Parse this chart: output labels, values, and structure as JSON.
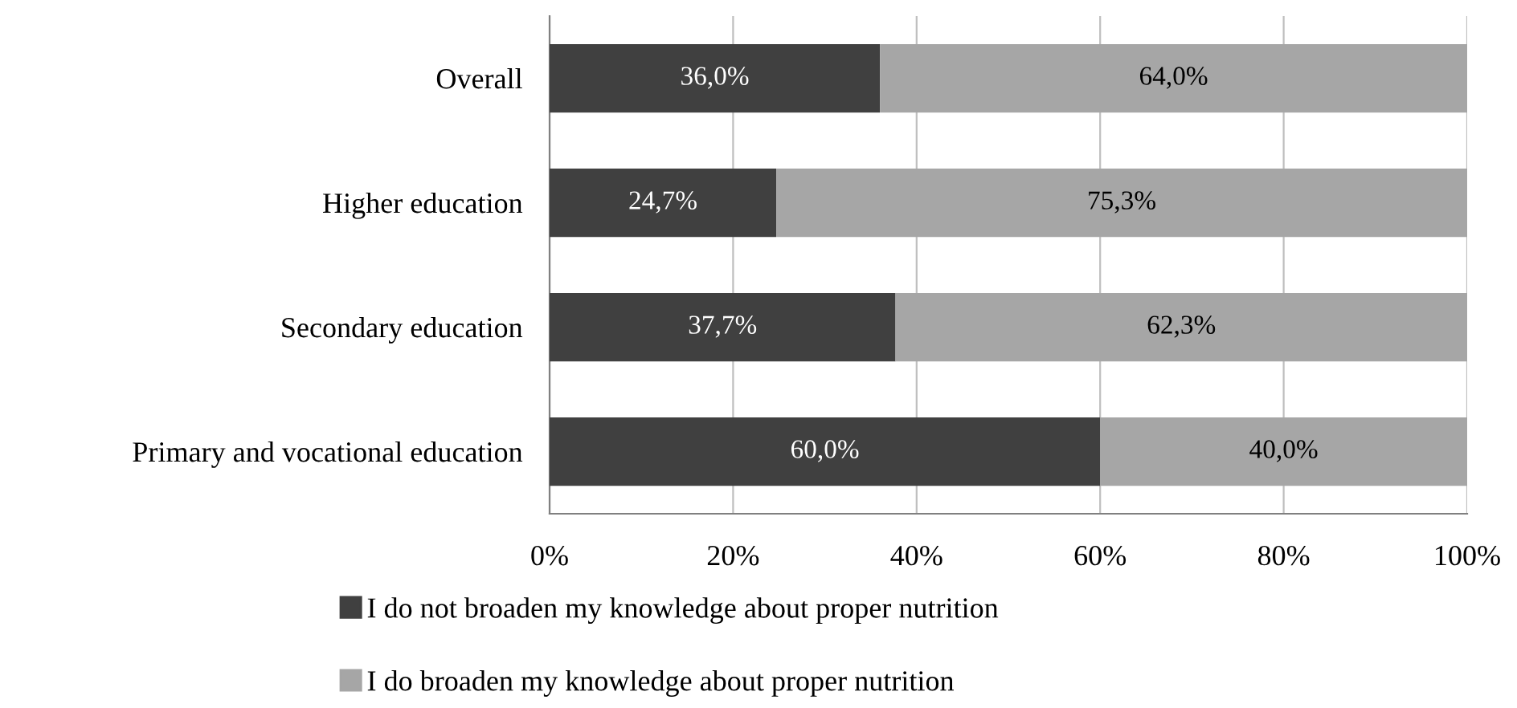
{
  "chart_data": {
    "type": "bar",
    "orientation": "horizontal",
    "stacked": true,
    "categories": [
      "Overall",
      "Higher education",
      "Secondary education",
      "Primary and vocational education"
    ],
    "series": [
      {
        "name": "I do not broaden my knowledge about proper nutrition",
        "color": "#404040",
        "values": [
          36.0,
          24.7,
          37.7,
          60.0
        ],
        "value_labels": [
          "36,0%",
          "24,7%",
          "37,7%",
          "60,0%"
        ]
      },
      {
        "name": "I do broaden my knowledge about proper nutrition",
        "color": "#a6a6a6",
        "values": [
          64.0,
          75.3,
          62.3,
          40.0
        ],
        "value_labels": [
          "64,0%",
          "75,3%",
          "62,3%",
          "40,0%"
        ]
      }
    ],
    "xlim": [
      0,
      100
    ],
    "xticks": [
      {
        "value": 0,
        "label": "0%"
      },
      {
        "value": 20,
        "label": "20%"
      },
      {
        "value": 40,
        "label": "40%"
      },
      {
        "value": 60,
        "label": "60%"
      },
      {
        "value": 80,
        "label": "80%"
      },
      {
        "value": 100,
        "label": "100%"
      }
    ],
    "grid": "x",
    "legend": "bottom"
  }
}
